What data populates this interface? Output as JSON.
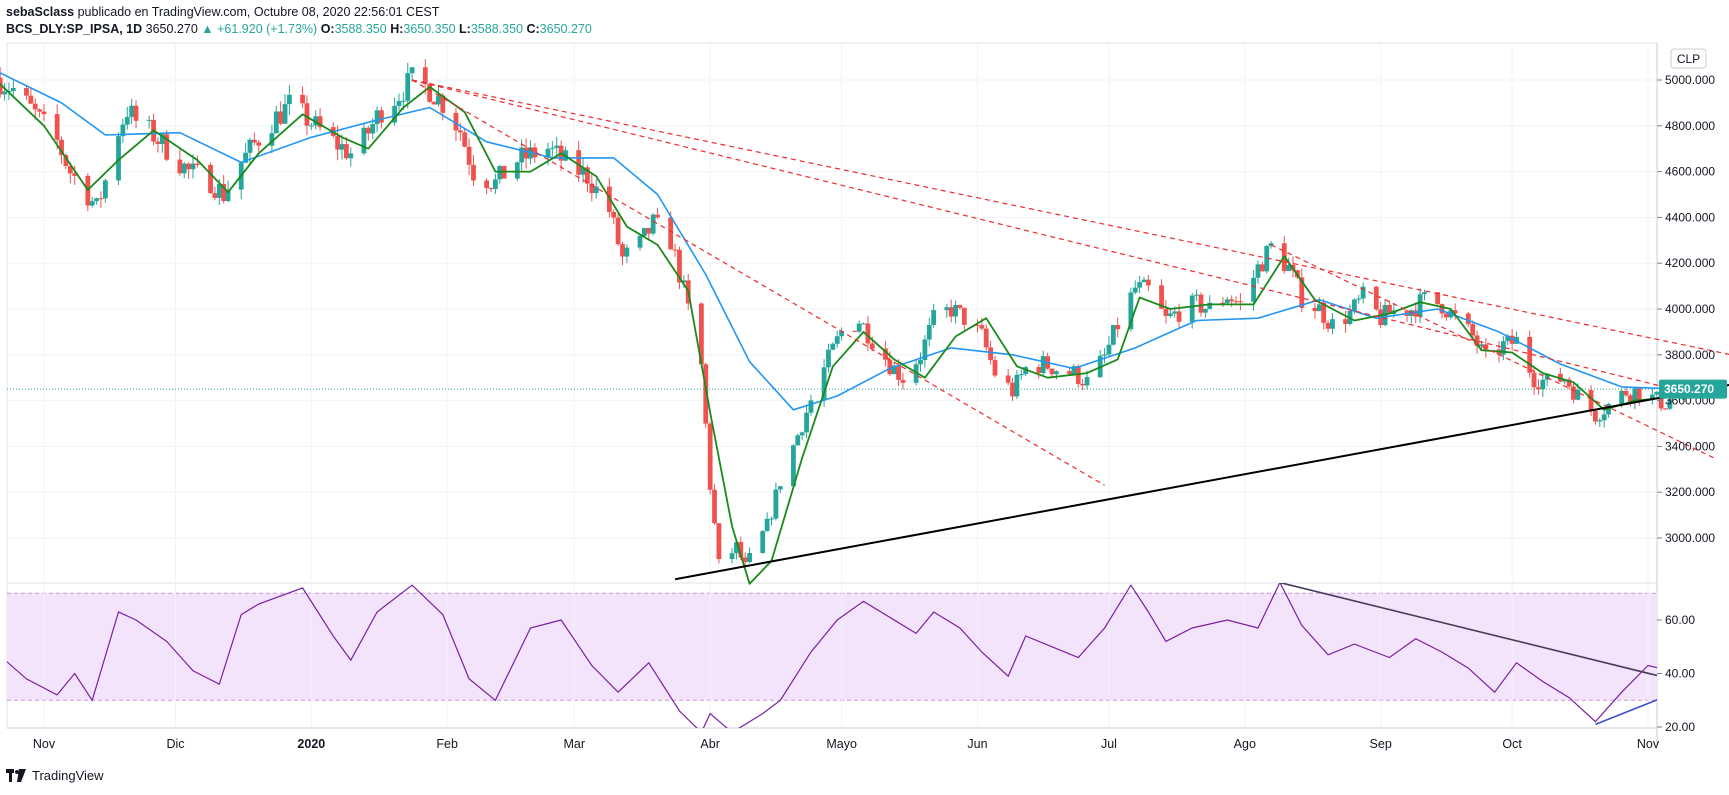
{
  "header": {
    "author": "sebaSclass",
    "published": "publicado en TradingView.com, Octubre 08, 2020 22:56:01 CEST",
    "symbol": "BCS_DLY:SP_IPSA, 1D",
    "last": "3650.270",
    "change": "▲ +61.920 (+1.73%)",
    "o_label": "O:",
    "o_value": "3588.350",
    "h_label": "H:",
    "h_value": "3650.350",
    "l_label": "L:",
    "l_value": "3588.350",
    "c_label": "C:",
    "c_value": "3650.270"
  },
  "currency": "CLP",
  "price_badge": "3650.270",
  "footer": {
    "brand": "TradingView",
    "logo_icon": "tradingview-logo-icon"
  },
  "colors": {
    "up": "#26a69a",
    "down": "#ef5350",
    "ema_fast": "#1a8a1a",
    "ema_slow": "#2196f3",
    "rsi": "#7b1fa2",
    "trend_red": "#ef2b2b"
  },
  "chart_data": [
    {
      "type": "candlestick",
      "timeframe": "1D",
      "ylim": [
        2800,
        5100
      ],
      "yticks": [
        "3000.000",
        "3200.000",
        "3400.000",
        "3600.000",
        "3800.000",
        "4000.000",
        "4200.000",
        "4400.000",
        "4600.000",
        "4800.000",
        "5000.000"
      ],
      "months": [
        "Nov",
        "Dic",
        "2020",
        "Feb",
        "Mar",
        "Abr",
        "Mayo",
        "Jun",
        "Jul",
        "Ago",
        "Sep",
        "Oct",
        "Nov"
      ],
      "close_path": [
        [
          "2019-10-21",
          5010
        ],
        [
          "2019-10-25",
          4960
        ],
        [
          "2019-10-30",
          4850
        ],
        [
          "2019-11-04",
          4730
        ],
        [
          "2019-11-07",
          4600
        ],
        [
          "2019-11-11",
          4500
        ],
        [
          "2019-11-13",
          4440
        ],
        [
          "2019-11-15",
          4560
        ],
        [
          "2019-11-18",
          4780
        ],
        [
          "2019-11-20",
          4870
        ],
        [
          "2019-11-22",
          4820
        ],
        [
          "2019-11-26",
          4760
        ],
        [
          "2019-11-29",
          4700
        ],
        [
          "2019-12-04",
          4600
        ],
        [
          "2019-12-09",
          4560
        ],
        [
          "2019-12-12",
          4500
        ],
        [
          "2019-12-16",
          4640
        ],
        [
          "2019-12-19",
          4720
        ],
        [
          "2019-12-23",
          4820
        ],
        [
          "2019-12-27",
          4890
        ],
        [
          "2019-12-31",
          4830
        ],
        [
          "2020-01-06",
          4730
        ],
        [
          "2020-01-10",
          4680
        ],
        [
          "2020-01-13",
          4740
        ],
        [
          "2020-01-17",
          4870
        ],
        [
          "2020-01-21",
          4940
        ],
        [
          "2020-01-24",
          5000
        ],
        [
          "2020-01-28",
          4960
        ],
        [
          "2020-01-31",
          4900
        ],
        [
          "2020-02-04",
          4780
        ],
        [
          "2020-02-07",
          4600
        ],
        [
          "2020-02-12",
          4550
        ],
        [
          "2020-02-17",
          4650
        ],
        [
          "2020-02-24",
          4700
        ],
        [
          "2020-02-28",
          4640
        ],
        [
          "2020-03-04",
          4580
        ],
        [
          "2020-03-09",
          4430
        ],
        [
          "2020-03-12",
          4220
        ],
        [
          "2020-03-16",
          4280
        ],
        [
          "2020-03-19",
          4370
        ],
        [
          "2020-03-23",
          4300
        ],
        [
          "2020-03-26",
          4080
        ],
        [
          "2020-03-30",
          3750
        ],
        [
          "2020-04-01",
          3230
        ],
        [
          "2020-04-03",
          2880
        ],
        [
          "2020-04-07",
          2960
        ],
        [
          "2020-04-09",
          2870
        ],
        [
          "2020-04-14",
          3050
        ],
        [
          "2020-04-17",
          3250
        ],
        [
          "2020-04-21",
          3450
        ],
        [
          "2020-04-24",
          3600
        ],
        [
          "2020-04-28",
          3780
        ],
        [
          "2020-05-01",
          3900
        ],
        [
          "2020-05-05",
          3950
        ],
        [
          "2020-05-08",
          3870
        ],
        [
          "2020-05-12",
          3760
        ],
        [
          "2020-05-15",
          3700
        ],
        [
          "2020-05-19",
          3800
        ],
        [
          "2020-05-22",
          3950
        ],
        [
          "2020-05-26",
          4000
        ],
        [
          "2020-05-29",
          3960
        ],
        [
          "2020-06-02",
          3880
        ],
        [
          "2020-06-05",
          3720
        ],
        [
          "2020-06-09",
          3640
        ],
        [
          "2020-06-12",
          3740
        ],
        [
          "2020-06-16",
          3760
        ],
        [
          "2020-06-19",
          3740
        ],
        [
          "2020-06-23",
          3720
        ],
        [
          "2020-06-26",
          3680
        ],
        [
          "2020-06-30",
          3790
        ],
        [
          "2020-07-03",
          3930
        ],
        [
          "2020-07-07",
          4090
        ],
        [
          "2020-07-10",
          4080
        ],
        [
          "2020-07-14",
          3950
        ],
        [
          "2020-07-17",
          3990
        ],
        [
          "2020-07-21",
          4020
        ],
        [
          "2020-07-24",
          4000
        ],
        [
          "2020-07-28",
          4060
        ],
        [
          "2020-07-31",
          4020
        ],
        [
          "2020-08-04",
          4180
        ],
        [
          "2020-08-07",
          4270
        ],
        [
          "2020-08-11",
          4180
        ],
        [
          "2020-08-14",
          4050
        ],
        [
          "2020-08-18",
          4000
        ],
        [
          "2020-08-21",
          3930
        ],
        [
          "2020-08-25",
          3980
        ],
        [
          "2020-08-28",
          4050
        ],
        [
          "2020-09-01",
          3960
        ],
        [
          "2020-09-04",
          3990
        ],
        [
          "2020-09-08",
          4000
        ],
        [
          "2020-09-11",
          4040
        ],
        [
          "2020-09-15",
          4020
        ],
        [
          "2020-09-18",
          3960
        ],
        [
          "2020-09-22",
          3880
        ],
        [
          "2020-09-25",
          3780
        ],
        [
          "2020-09-29",
          3840
        ],
        [
          "2020-10-02",
          3860
        ],
        [
          "2020-10-06",
          3700
        ],
        [
          "2020-10-09",
          3680
        ],
        [
          "2020-10-13",
          3700
        ],
        [
          "2020-10-16",
          3620
        ],
        [
          "2020-10-20",
          3540
        ],
        [
          "2020-10-23",
          3580
        ],
        [
          "2020-10-27",
          3640
        ],
        [
          "2020-10-30",
          3640
        ],
        [
          "2020-11-03",
          3600
        ],
        [
          "2020-11-05",
          3590
        ],
        [
          "2020-11-09",
          3650
        ]
      ],
      "ema_fast": [
        [
          "2019-10-21",
          5000
        ],
        [
          "2019-11-01",
          4800
        ],
        [
          "2019-11-11",
          4520
        ],
        [
          "2019-11-18",
          4650
        ],
        [
          "2019-11-26",
          4780
        ],
        [
          "2019-12-06",
          4650
        ],
        [
          "2019-12-13",
          4510
        ],
        [
          "2019-12-20",
          4680
        ],
        [
          "2019-12-30",
          4850
        ],
        [
          "2020-01-08",
          4750
        ],
        [
          "2020-01-14",
          4700
        ],
        [
          "2020-01-22",
          4880
        ],
        [
          "2020-01-28",
          4970
        ],
        [
          "2020-02-05",
          4860
        ],
        [
          "2020-02-12",
          4600
        ],
        [
          "2020-02-20",
          4600
        ],
        [
          "2020-02-27",
          4680
        ],
        [
          "2020-03-06",
          4580
        ],
        [
          "2020-03-13",
          4360
        ],
        [
          "2020-03-20",
          4280
        ],
        [
          "2020-03-27",
          4080
        ],
        [
          "2020-04-01",
          3550
        ],
        [
          "2020-04-06",
          3050
        ],
        [
          "2020-04-10",
          2800
        ],
        [
          "2020-04-15",
          2900
        ],
        [
          "2020-04-22",
          3350
        ],
        [
          "2020-04-29",
          3750
        ],
        [
          "2020-05-06",
          3900
        ],
        [
          "2020-05-13",
          3780
        ],
        [
          "2020-05-20",
          3700
        ],
        [
          "2020-05-27",
          3880
        ],
        [
          "2020-06-03",
          3960
        ],
        [
          "2020-06-10",
          3750
        ],
        [
          "2020-06-17",
          3700
        ],
        [
          "2020-06-26",
          3720
        ],
        [
          "2020-07-03",
          3780
        ],
        [
          "2020-07-08",
          4050
        ],
        [
          "2020-07-15",
          4000
        ],
        [
          "2020-07-24",
          4020
        ],
        [
          "2020-08-03",
          4020
        ],
        [
          "2020-08-10",
          4230
        ],
        [
          "2020-08-17",
          4040
        ],
        [
          "2020-08-26",
          3950
        ],
        [
          "2020-09-03",
          3980
        ],
        [
          "2020-09-10",
          4030
        ],
        [
          "2020-09-17",
          4000
        ],
        [
          "2020-09-24",
          3820
        ],
        [
          "2020-10-01",
          3810
        ],
        [
          "2020-10-08",
          3720
        ],
        [
          "2020-10-15",
          3680
        ],
        [
          "2020-10-22",
          3560
        ],
        [
          "2020-10-29",
          3600
        ],
        [
          "2020-11-09",
          3620
        ]
      ],
      "ema_slow": [
        [
          "2019-10-21",
          5040
        ],
        [
          "2019-11-05",
          4900
        ],
        [
          "2019-11-15",
          4760
        ],
        [
          "2019-12-02",
          4770
        ],
        [
          "2019-12-16",
          4640
        ],
        [
          "2020-01-01",
          4750
        ],
        [
          "2020-01-15",
          4820
        ],
        [
          "2020-01-28",
          4880
        ],
        [
          "2020-02-10",
          4730
        ],
        [
          "2020-02-25",
          4660
        ],
        [
          "2020-03-10",
          4660
        ],
        [
          "2020-03-20",
          4500
        ],
        [
          "2020-03-31",
          4150
        ],
        [
          "2020-04-10",
          3770
        ],
        [
          "2020-04-20",
          3560
        ],
        [
          "2020-04-30",
          3620
        ],
        [
          "2020-05-12",
          3740
        ],
        [
          "2020-05-26",
          3830
        ],
        [
          "2020-06-09",
          3800
        ],
        [
          "2020-06-23",
          3740
        ],
        [
          "2020-07-07",
          3830
        ],
        [
          "2020-07-21",
          3950
        ],
        [
          "2020-08-04",
          3960
        ],
        [
          "2020-08-18",
          4040
        ],
        [
          "2020-08-31",
          3960
        ],
        [
          "2020-09-14",
          4000
        ],
        [
          "2020-09-28",
          3900
        ],
        [
          "2020-10-12",
          3760
        ],
        [
          "2020-10-26",
          3660
        ],
        [
          "2020-11-09",
          3650
        ]
      ],
      "trendlines": [
        {
          "color": "#ef2b2b",
          "style": "dashed",
          "points": [
            [
              "2020-01-24",
              5000
            ],
            [
              "2020-06-30",
              3230
            ]
          ]
        },
        {
          "color": "#ef2b2b",
          "style": "dashed",
          "points": [
            [
              "2020-01-24",
              5000
            ],
            [
              "2020-11-09",
              3640
            ]
          ]
        },
        {
          "color": "#ef2b2b",
          "style": "dashed",
          "points": [
            [
              "2020-01-24",
              5000
            ],
            [
              "2020-11-20",
              3800
            ]
          ]
        },
        {
          "color": "#ef2b2b",
          "style": "dashed",
          "points": [
            [
              "2020-08-07",
              4280
            ],
            [
              "2020-11-16",
              3350
            ]
          ]
        },
        {
          "color": "#000000",
          "style": "solid",
          "points": [
            [
              "2020-03-24",
              2820
            ],
            [
              "2020-11-20",
              3670
            ]
          ]
        }
      ],
      "last_price_line": 3650
    },
    {
      "type": "line",
      "indicator": "rsi",
      "ylim": [
        20,
        75
      ],
      "yticks": [
        "20.00",
        "40.00",
        "60.00"
      ],
      "band": [
        30,
        70
      ],
      "values": [
        [
          "2019-10-21",
          48
        ],
        [
          "2019-10-28",
          38
        ],
        [
          "2019-11-04",
          32
        ],
        [
          "2019-11-08",
          40
        ],
        [
          "2019-11-12",
          30
        ],
        [
          "2019-11-18",
          63
        ],
        [
          "2019-11-22",
          60
        ],
        [
          "2019-11-29",
          52
        ],
        [
          "2019-12-05",
          41
        ],
        [
          "2019-12-11",
          36
        ],
        [
          "2019-12-16",
          62
        ],
        [
          "2019-12-20",
          66
        ],
        [
          "2019-12-30",
          72
        ],
        [
          "2020-01-06",
          54
        ],
        [
          "2020-01-10",
          45
        ],
        [
          "2020-01-16",
          63
        ],
        [
          "2020-01-24",
          73
        ],
        [
          "2020-01-31",
          62
        ],
        [
          "2020-02-06",
          38
        ],
        [
          "2020-02-12",
          30
        ],
        [
          "2020-02-20",
          57
        ],
        [
          "2020-02-27",
          60
        ],
        [
          "2020-03-05",
          43
        ],
        [
          "2020-03-11",
          33
        ],
        [
          "2020-03-18",
          44
        ],
        [
          "2020-03-25",
          26
        ],
        [
          "2020-03-30",
          18
        ],
        [
          "2020-04-01",
          25
        ],
        [
          "2020-04-06",
          18
        ],
        [
          "2020-04-13",
          25
        ],
        [
          "2020-04-17",
          30
        ],
        [
          "2020-04-24",
          48
        ],
        [
          "2020-04-30",
          60
        ],
        [
          "2020-05-06",
          67
        ],
        [
          "2020-05-12",
          61
        ],
        [
          "2020-05-18",
          55
        ],
        [
          "2020-05-22",
          63
        ],
        [
          "2020-05-28",
          57
        ],
        [
          "2020-06-02",
          48
        ],
        [
          "2020-06-08",
          39
        ],
        [
          "2020-06-12",
          54
        ],
        [
          "2020-06-18",
          50
        ],
        [
          "2020-06-24",
          46
        ],
        [
          "2020-06-30",
          57
        ],
        [
          "2020-07-06",
          73
        ],
        [
          "2020-07-10",
          63
        ],
        [
          "2020-07-14",
          52
        ],
        [
          "2020-07-20",
          57
        ],
        [
          "2020-07-28",
          60
        ],
        [
          "2020-08-04",
          57
        ],
        [
          "2020-08-09",
          74
        ],
        [
          "2020-08-14",
          58
        ],
        [
          "2020-08-20",
          47
        ],
        [
          "2020-08-26",
          51
        ],
        [
          "2020-09-03",
          46
        ],
        [
          "2020-09-09",
          53
        ],
        [
          "2020-09-15",
          48
        ],
        [
          "2020-09-21",
          42
        ],
        [
          "2020-09-27",
          33
        ],
        [
          "2020-10-02",
          44
        ],
        [
          "2020-10-08",
          37
        ],
        [
          "2020-10-14",
          31
        ],
        [
          "2020-10-20",
          22
        ],
        [
          "2020-10-26",
          33
        ],
        [
          "2020-11-01",
          43
        ],
        [
          "2020-11-06",
          41
        ],
        [
          "2020-11-09",
          45
        ]
      ],
      "trendlines": [
        {
          "color": "#4a3b5c",
          "style": "solid",
          "points": [
            [
              "2020-08-09",
              74
            ],
            [
              "2020-11-26",
              30
            ]
          ]
        },
        {
          "color": "#3f4fcf",
          "style": "solid",
          "points": [
            [
              "2020-10-20",
              21
            ],
            [
              "2020-12-02",
              49
            ]
          ]
        }
      ]
    }
  ]
}
